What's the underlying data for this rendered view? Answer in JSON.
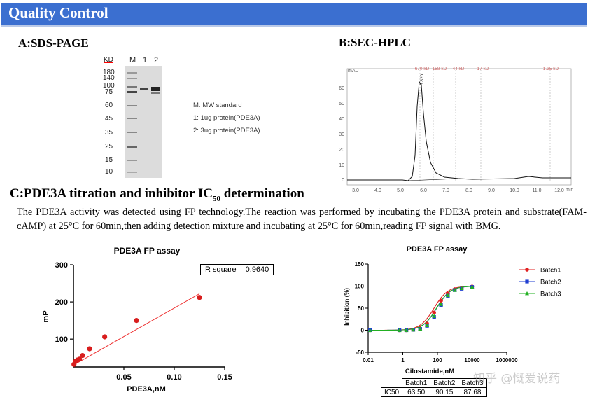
{
  "banner": {
    "title": "Quality Control",
    "color": "#3b6fd0"
  },
  "sections": {
    "a": "A:SDS-PAGE",
    "b": "B:SEC-HPLC",
    "c_main": "C:PDE3A titration and inhibitor IC",
    "c_sub": "50",
    "c_tail": " determination"
  },
  "description": "The PDE3A activity was detected using FP technology.The reaction was performed by incubating the PDE3A protein and substrate(FAM-cAMP) at 25°C for 60min,then adding detection mixture and incubating at 25°C for 60min,reading FP signal with BMG.",
  "gel": {
    "kd_label": "KD",
    "lanes": [
      "M",
      "1",
      "2"
    ],
    "markers": [
      "180",
      "140",
      "100",
      "75",
      "60",
      "45",
      "35",
      "25",
      "15",
      "10"
    ],
    "legend": [
      "M:  MW standard",
      "1:  1ug protein(PDE3A)",
      "2:  3ug protein(PDE3A)"
    ]
  },
  "hplc": {
    "y_unit": "mAU",
    "y_ticks": [
      "60",
      "50",
      "40",
      "30",
      "20",
      "10",
      "0"
    ],
    "x_ticks": [
      "3.0",
      "4.0",
      "5.0",
      "6.0",
      "7.0",
      "8.0",
      "9.0",
      "10.0",
      "11.0",
      "12.0"
    ],
    "x_unit": "min",
    "standards": [
      "670 kD",
      "158 kD",
      "44 kD",
      "17 kD",
      "1.35 kD"
    ],
    "peak_label": "5.820"
  },
  "chart_data": [
    {
      "type": "scatter",
      "title": "PDE3A FP assay",
      "xlabel": "PDE3A,nM",
      "ylabel": "mP",
      "xlim": [
        0,
        0.15
      ],
      "ylim": [
        25,
        300
      ],
      "x_ticks": [
        "0.05",
        "0.10",
        "0.15"
      ],
      "y_ticks": [
        "100",
        "200",
        "300"
      ],
      "x": [
        0.0005,
        0.002,
        0.004,
        0.006,
        0.009,
        0.016,
        0.031,
        0.0625,
        0.125
      ],
      "y": [
        32,
        40,
        44,
        46,
        56,
        74,
        106,
        150,
        212
      ],
      "fit_line": {
        "x": [
          0,
          0.125
        ],
        "y": [
          30,
          222
        ]
      },
      "r_square_label": "R square",
      "r_square_value": "0.9640"
    },
    {
      "type": "line",
      "title": "PDE3A FP assay",
      "xlabel": "Cilostamide,nM",
      "ylabel": "Inhibition (%)",
      "xscale": "log",
      "xlim": [
        0.01,
        100000
      ],
      "ylim": [
        -50,
        150
      ],
      "x_ticks": [
        "0.01",
        "1",
        "100",
        "10000"
      ],
      "x_tick_last": "1000000",
      "y_ticks": [
        "150",
        "100",
        "50",
        "0",
        "-50"
      ],
      "x": [
        0.0128,
        0.64,
        1.6,
        4,
        10,
        25,
        64,
        160,
        400,
        1000,
        2500,
        10000
      ],
      "series": [
        {
          "name": "Batch1",
          "color": "#e02020",
          "marker": "circle",
          "ic50": 63.5,
          "values": [
            0,
            0,
            0,
            1,
            4,
            15,
            40,
            67,
            83,
            93,
            96,
            99
          ]
        },
        {
          "name": "Batch2",
          "color": "#1f3ed1",
          "marker": "square",
          "ic50": 90.15,
          "values": [
            0,
            0,
            0,
            1,
            3,
            10,
            30,
            57,
            78,
            91,
            94,
            98
          ]
        },
        {
          "name": "Batch3",
          "color": "#22b022",
          "marker": "triangle",
          "ic50": 87.68,
          "values": [
            0,
            0,
            0,
            1,
            3,
            11,
            32,
            59,
            79,
            91,
            95,
            98
          ]
        }
      ],
      "ic50_table": {
        "row_label": "IC50",
        "headers": [
          "Batch1",
          "Batch2",
          "Batch3"
        ],
        "values": [
          "63.50",
          "90.15",
          "87.68"
        ]
      }
    }
  ],
  "watermark": "知乎 @慨爱说药"
}
